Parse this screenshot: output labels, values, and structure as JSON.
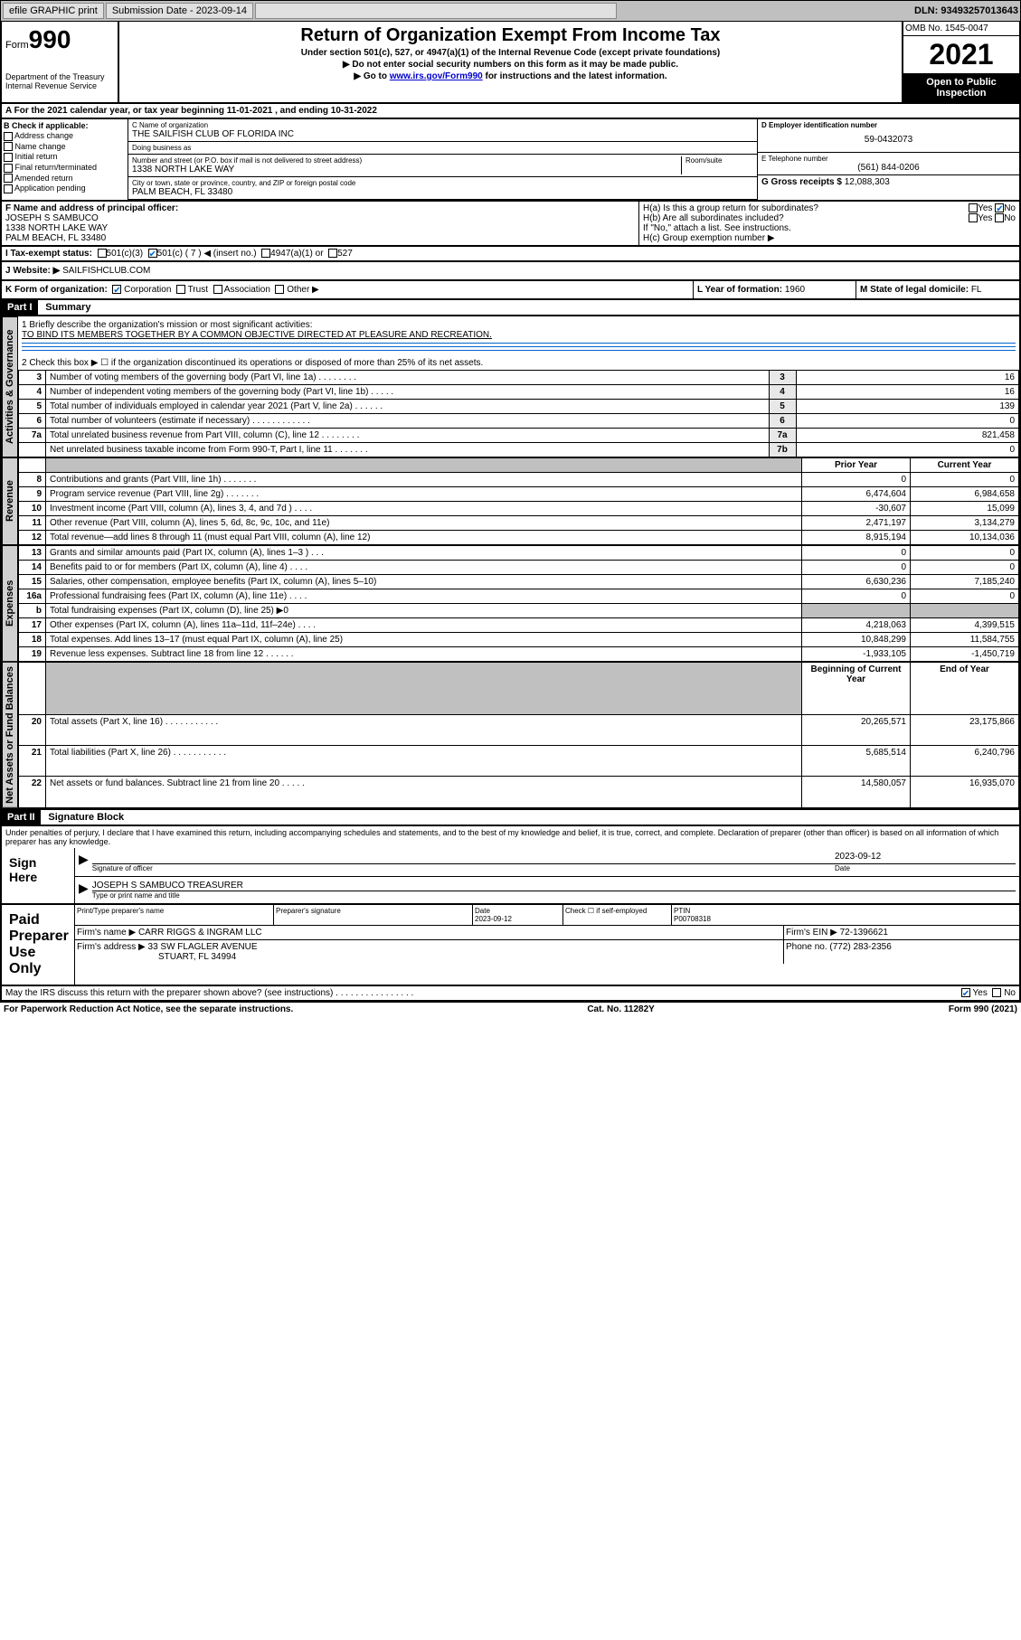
{
  "topbar": {
    "efile": "efile GRAPHIC print",
    "submission_label": "Submission Date - 2023-09-14",
    "dln": "DLN: 93493257013643"
  },
  "header": {
    "form_prefix": "Form",
    "form_number": "990",
    "dept": "Department of the Treasury",
    "irs": "Internal Revenue Service",
    "title": "Return of Organization Exempt From Income Tax",
    "subtitle": "Under section 501(c), 527, or 4947(a)(1) of the Internal Revenue Code (except private foundations)",
    "note1": "▶ Do not enter social security numbers on this form as it may be made public.",
    "note2_pre": "▶ Go to ",
    "note2_link": "www.irs.gov/Form990",
    "note2_post": " for instructions and the latest information.",
    "omb": "OMB No. 1545-0047",
    "year": "2021",
    "inspection": "Open to Public Inspection"
  },
  "row_a": "A For the 2021 calendar year, or tax year beginning 11-01-2021   , and ending 10-31-2022",
  "col_b": {
    "header": "B Check if applicable:",
    "items": [
      "Address change",
      "Name change",
      "Initial return",
      "Final return/terminated",
      "Amended return",
      "Application pending"
    ]
  },
  "org": {
    "name_label": "C Name of organization",
    "name": "THE SAILFISH CLUB OF FLORIDA INC",
    "dba_label": "Doing business as",
    "dba": "",
    "addr_label": "Number and street (or P.O. box if mail is not delivered to street address)",
    "addr": "1338 NORTH LAKE WAY",
    "room_label": "Room/suite",
    "city_label": "City or town, state or province, country, and ZIP or foreign postal code",
    "city": "PALM BEACH, FL  33480"
  },
  "right_box": {
    "ein_label": "D Employer identification number",
    "ein": "59-0432073",
    "phone_label": "E Telephone number",
    "phone": "(561) 844-0206",
    "gross_label": "G Gross receipts $ ",
    "gross": "12,088,303"
  },
  "officer": {
    "label": "F Name and address of principal officer:",
    "name": "JOSEPH S SAMBUCO",
    "addr1": "1338 NORTH LAKE WAY",
    "addr2": "PALM BEACH, FL  33480"
  },
  "h_section": {
    "ha": "H(a)  Is this a group return for subordinates?",
    "hb": "H(b)  Are all subordinates included?",
    "hb_note": "If \"No,\" attach a list. See instructions.",
    "hc": "H(c)  Group exemption number ▶",
    "yes": "Yes",
    "no": "No"
  },
  "tax_status": {
    "label": "I   Tax-exempt status:",
    "opts": [
      "501(c)(3)",
      "501(c) ( 7 ) ◀ (insert no.)",
      "4947(a)(1) or",
      "527"
    ]
  },
  "website": {
    "label": "J   Website: ▶",
    "val": "SAILFISHCLUB.COM"
  },
  "k_row": {
    "label": "K Form of organization:",
    "opts": [
      "Corporation",
      "Trust",
      "Association",
      "Other ▶"
    ]
  },
  "l_row": {
    "label": "L Year of formation: ",
    "val": "1960"
  },
  "m_row": {
    "label": "M State of legal domicile: ",
    "val": "FL"
  },
  "part1": {
    "header": "Part I",
    "title": "Summary",
    "line1_label": "1  Briefly describe the organization's mission or most significant activities:",
    "mission": "TO BIND ITS MEMBERS TOGETHER BY A COMMON OBJECTIVE DIRECTED AT PLEASURE AND RECREATION.",
    "line2": "2   Check this box ▶ ☐  if the organization discontinued its operations or disposed of more than 25% of its net assets.",
    "tabs": {
      "activities": "Activities & Governance",
      "revenue": "Revenue",
      "expenses": "Expenses",
      "netassets": "Net Assets or Fund Balances"
    },
    "col_prior": "Prior Year",
    "col_current": "Current Year",
    "col_beg": "Beginning of Current Year",
    "col_end": "End of Year",
    "rows_gov": [
      {
        "n": "3",
        "label": "Number of voting members of the governing body (Part VI, line 1a)   .    .    .    .    .    .    .    .",
        "ln": "3",
        "v": "16"
      },
      {
        "n": "4",
        "label": "Number of independent voting members of the governing body (Part VI, line 1b)  .    .    .    .    .",
        "ln": "4",
        "v": "16"
      },
      {
        "n": "5",
        "label": "Total number of individuals employed in calendar year 2021 (Part V, line 2a)   .    .    .    .    .    .",
        "ln": "5",
        "v": "139"
      },
      {
        "n": "6",
        "label": "Total number of volunteers (estimate if necessary)   .    .    .    .    .    .    .    .    .    .    .    .",
        "ln": "6",
        "v": "0"
      },
      {
        "n": "7a",
        "label": "Total unrelated business revenue from Part VIII, column (C), line 12   .    .    .    .    .    .    .    .",
        "ln": "7a",
        "v": "821,458"
      },
      {
        "n": "",
        "label": "Net unrelated business taxable income from Form 990-T, Part I, line 11   .    .    .    .    .    .    .",
        "ln": "7b",
        "v": "0"
      }
    ],
    "rows_rev": [
      {
        "n": "8",
        "label": "Contributions and grants (Part VIII, line 1h)    .    .    .    .    .    .    .",
        "p": "0",
        "c": "0"
      },
      {
        "n": "9",
        "label": "Program service revenue (Part VIII, line 2g)    .    .    .    .    .    .    .",
        "p": "6,474,604",
        "c": "6,984,658"
      },
      {
        "n": "10",
        "label": "Investment income (Part VIII, column (A), lines 3, 4, and 7d )   .    .    .    .",
        "p": "-30,607",
        "c": "15,099"
      },
      {
        "n": "11",
        "label": "Other revenue (Part VIII, column (A), lines 5, 6d, 8c, 9c, 10c, and 11e)",
        "p": "2,471,197",
        "c": "3,134,279"
      },
      {
        "n": "12",
        "label": "Total revenue—add lines 8 through 11 (must equal Part VIII, column (A), line 12)",
        "p": "8,915,194",
        "c": "10,134,036"
      }
    ],
    "rows_exp": [
      {
        "n": "13",
        "label": "Grants and similar amounts paid (Part IX, column (A), lines 1–3 )   .    .    .",
        "p": "0",
        "c": "0"
      },
      {
        "n": "14",
        "label": "Benefits paid to or for members (Part IX, column (A), line 4)   .    .    .    .",
        "p": "0",
        "c": "0"
      },
      {
        "n": "15",
        "label": "Salaries, other compensation, employee benefits (Part IX, column (A), lines 5–10)",
        "p": "6,630,236",
        "c": "7,185,240"
      },
      {
        "n": "16a",
        "label": "Professional fundraising fees (Part IX, column (A), line 11e)   .    .    .    .",
        "p": "0",
        "c": "0"
      },
      {
        "n": "b",
        "label": "Total fundraising expenses (Part IX, column (D), line 25) ▶0",
        "p": "",
        "c": "",
        "gray": true
      },
      {
        "n": "17",
        "label": "Other expenses (Part IX, column (A), lines 11a–11d, 11f–24e)   .    .    .    .",
        "p": "4,218,063",
        "c": "4,399,515"
      },
      {
        "n": "18",
        "label": "Total expenses. Add lines 13–17 (must equal Part IX, column (A), line 25)",
        "p": "10,848,299",
        "c": "11,584,755"
      },
      {
        "n": "19",
        "label": "Revenue less expenses. Subtract line 18 from line 12   .    .    .    .    .    .",
        "p": "-1,933,105",
        "c": "-1,450,719"
      }
    ],
    "rows_net": [
      {
        "n": "20",
        "label": "Total assets (Part X, line 16)   .    .    .    .    .    .    .    .    .    .    .",
        "p": "20,265,571",
        "c": "23,175,866"
      },
      {
        "n": "21",
        "label": "Total liabilities (Part X, line 26)   .    .    .    .    .    .    .    .    .    .    .",
        "p": "5,685,514",
        "c": "6,240,796"
      },
      {
        "n": "22",
        "label": "Net assets or fund balances. Subtract line 21 from line 20   .    .    .    .    .",
        "p": "14,580,057",
        "c": "16,935,070"
      }
    ]
  },
  "part2": {
    "header": "Part II",
    "title": "Signature Block",
    "declaration": "Under penalties of perjury, I declare that I have examined this return, including accompanying schedules and statements, and to the best of my knowledge and belief, it is true, correct, and complete. Declaration of preparer (other than officer) is based on all information of which preparer has any knowledge.",
    "sign_here": "Sign Here",
    "sig_officer": "Signature of officer",
    "sig_date": "2023-09-12",
    "date_label": "Date",
    "officer_name": "JOSEPH S SAMBUCO TREASURER",
    "name_label": "Type or print name and title",
    "paid": "Paid Preparer Use Only",
    "prep_name_label": "Print/Type preparer's name",
    "prep_sig_label": "Preparer's signature",
    "prep_date_label": "Date",
    "prep_date": "2023-09-12",
    "check_label": "Check ☐ if self-employed",
    "ptin_label": "PTIN",
    "ptin": "P00708318",
    "firm_name_label": "Firm's name    ▶",
    "firm_name": "CARR RIGGS & INGRAM LLC",
    "firm_ein_label": "Firm's EIN ▶",
    "firm_ein": "72-1396621",
    "firm_addr_label": "Firm's address ▶",
    "firm_addr1": "33 SW FLAGLER AVENUE",
    "firm_addr2": "STUART, FL  34994",
    "firm_phone_label": "Phone no. ",
    "firm_phone": "(772) 283-2356",
    "may_irs": "May the IRS discuss this return with the preparer shown above? (see instructions)    .    .    .    .    .    .    .    .    .    .    .    .    .    .    .    .",
    "yes": "Yes",
    "no": "No"
  },
  "footer": {
    "left": "For Paperwork Reduction Act Notice, see the separate instructions.",
    "mid": "Cat. No. 11282Y",
    "right": "Form 990 (2021)"
  }
}
